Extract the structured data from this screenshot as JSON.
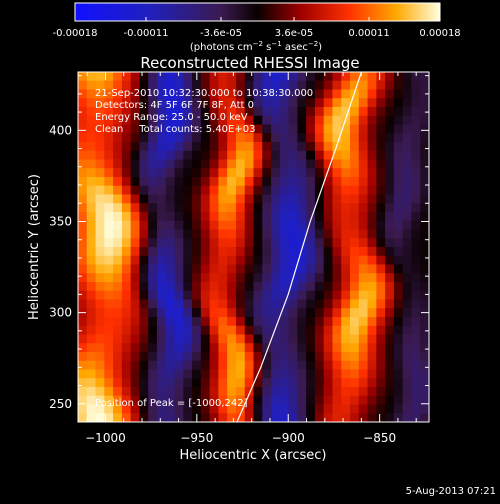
{
  "chart_data": {
    "type": "heatmap",
    "title": "Reconstructed RHESSI Image",
    "xlabel": "Heliocentric X (arcsec)",
    "ylabel": "Heliocentric Y (arcsec)",
    "xlim": [
      -1015,
      -823
    ],
    "ylim": [
      240,
      432
    ],
    "x_ticks": [
      -1000,
      -950,
      -900,
      -850
    ],
    "x_tick_labels": [
      "−1000",
      "−950",
      "−900",
      "−850"
    ],
    "y_ticks": [
      250,
      300,
      350,
      400
    ],
    "y_tick_labels": [
      "250",
      "300",
      "350",
      "400"
    ],
    "colorbar": {
      "range": [
        -0.00018,
        0.00018
      ],
      "ticks": [
        -0.00018,
        -0.00011,
        -3.6e-05,
        3.6e-05,
        0.00011,
        0.00018
      ],
      "tick_labels": [
        "-0.00018",
        "-0.00011",
        "-3.6e-05",
        "3.6e-05",
        "0.00011",
        "0.00018"
      ],
      "unit_prefix": "(photons cm",
      "unit_exp1": "−2",
      "unit_mid": " s",
      "unit_exp2": "−1",
      "unit_mid2": " asec",
      "unit_exp3": "−2",
      "unit_suffix": ")"
    },
    "info_lines": [
      "21-Sep-2010 10:32:30.000 to 10:38:30.000",
      "Detectors: 4F 5F 6F 7F 8F, Att 0",
      "Energy Range: 25.0 - 50.0 keV",
      "Clean     Total counts: 5.40E+03"
    ],
    "peak_label": "Position of Peak = [-1000,242]",
    "limb_curve": [
      [
        -928,
        240
      ],
      [
        -915,
        270
      ],
      [
        -900,
        310
      ],
      [
        -888,
        350
      ],
      [
        -874,
        390
      ],
      [
        -860,
        432
      ]
    ],
    "stripes": [
      {
        "x": -1002,
        "width": 22,
        "amp": 1.0
      },
      {
        "x": -968,
        "width": 12,
        "amp": -0.75
      },
      {
        "x": -932,
        "width": 13,
        "amp": 0.8
      },
      {
        "x": -902,
        "width": 14,
        "amp": -0.7
      },
      {
        "x": -865,
        "width": 15,
        "amp": 0.85
      },
      {
        "x": -835,
        "width": 10,
        "amp": -0.3
      }
    ],
    "grid": false
  },
  "footer_date": "5-Aug-2013 07:21"
}
